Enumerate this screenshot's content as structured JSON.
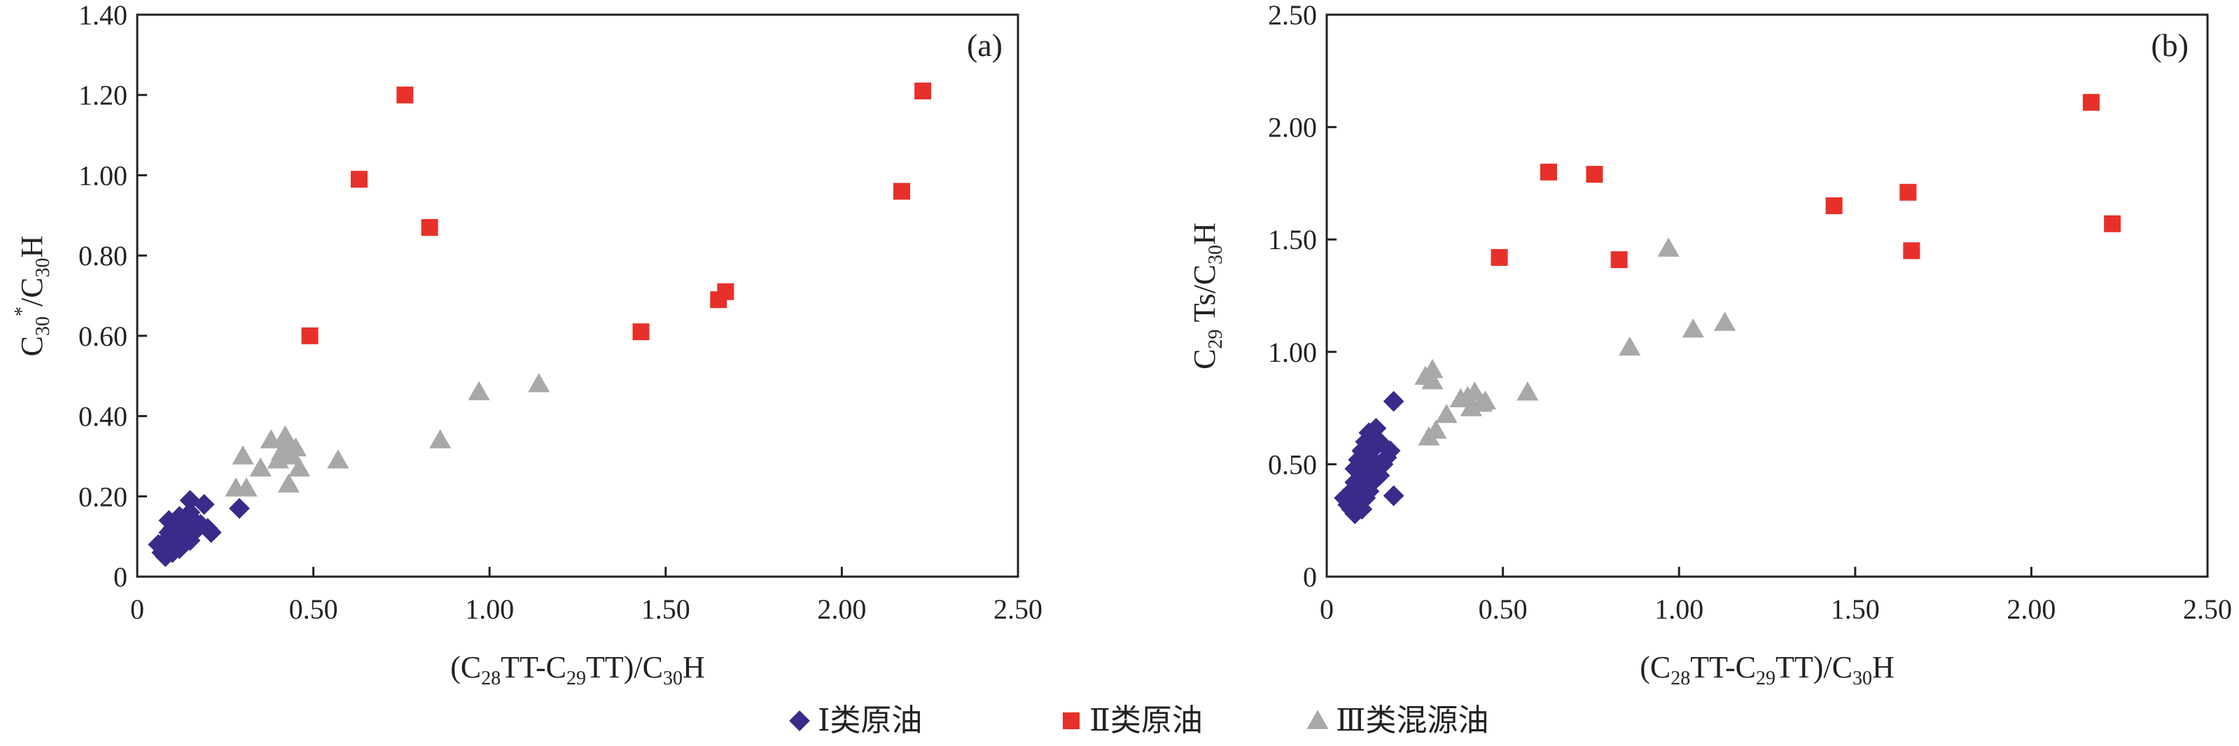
{
  "chart_data": [
    {
      "type": "scatter",
      "panel_label": "(a)",
      "xlabel": "(C28TT-C29TT)/C30H",
      "ylabel": "C30*/C30H",
      "xlim": [
        0,
        2.5
      ],
      "ylim": [
        0,
        1.4
      ],
      "x_ticks": [
        "0",
        "0.50",
        "1.00",
        "1.50",
        "2.00",
        "2.50"
      ],
      "y_ticks": [
        "0",
        "0.20",
        "0.40",
        "0.60",
        "0.80",
        "1.00",
        "1.20",
        "1.40"
      ],
      "grid": false,
      "series": [
        {
          "name": "Ⅰ类原油",
          "marker": "diamond",
          "color": "#3a2a8a",
          "points": [
            [
              0.06,
              0.08
            ],
            [
              0.07,
              0.06
            ],
            [
              0.08,
              0.05
            ],
            [
              0.08,
              0.09
            ],
            [
              0.09,
              0.07
            ],
            [
              0.09,
              0.11
            ],
            [
              0.09,
              0.14
            ],
            [
              0.1,
              0.06
            ],
            [
              0.1,
              0.09
            ],
            [
              0.1,
              0.12
            ],
            [
              0.11,
              0.08
            ],
            [
              0.11,
              0.1
            ],
            [
              0.11,
              0.13
            ],
            [
              0.12,
              0.07
            ],
            [
              0.12,
              0.09
            ],
            [
              0.12,
              0.12
            ],
            [
              0.12,
              0.15
            ],
            [
              0.13,
              0.08
            ],
            [
              0.13,
              0.11
            ],
            [
              0.13,
              0.14
            ],
            [
              0.14,
              0.1
            ],
            [
              0.14,
              0.12
            ],
            [
              0.15,
              0.09
            ],
            [
              0.15,
              0.16
            ],
            [
              0.15,
              0.19
            ],
            [
              0.16,
              0.11
            ],
            [
              0.16,
              0.14
            ],
            [
              0.18,
              0.13
            ],
            [
              0.19,
              0.18
            ],
            [
              0.2,
              0.12
            ],
            [
              0.21,
              0.11
            ],
            [
              0.29,
              0.17
            ]
          ]
        },
        {
          "name": "Ⅱ类原油",
          "marker": "square",
          "color": "#e8302a",
          "points": [
            [
              0.49,
              0.6
            ],
            [
              0.63,
              0.99
            ],
            [
              0.76,
              1.2
            ],
            [
              0.83,
              0.87
            ],
            [
              1.43,
              0.61
            ],
            [
              1.65,
              0.69
            ],
            [
              1.67,
              0.71
            ],
            [
              2.17,
              0.96
            ],
            [
              2.23,
              1.21
            ]
          ]
        },
        {
          "name": "Ⅲ类混源油",
          "marker": "triangle",
          "color": "#a8a8a8",
          "points": [
            [
              0.28,
              0.22
            ],
            [
              0.3,
              0.3
            ],
            [
              0.31,
              0.22
            ],
            [
              0.35,
              0.27
            ],
            [
              0.38,
              0.34
            ],
            [
              0.4,
              0.29
            ],
            [
              0.41,
              0.31
            ],
            [
              0.42,
              0.35
            ],
            [
              0.43,
              0.23
            ],
            [
              0.43,
              0.33
            ],
            [
              0.44,
              0.3
            ],
            [
              0.45,
              0.32
            ],
            [
              0.46,
              0.27
            ],
            [
              0.57,
              0.29
            ],
            [
              0.86,
              0.34
            ],
            [
              0.97,
              0.46
            ],
            [
              1.14,
              0.48
            ]
          ]
        }
      ]
    },
    {
      "type": "scatter",
      "panel_label": "(b)",
      "xlabel": "(C28TT-C29TT)/C30H",
      "ylabel": "C29Ts/C30H",
      "xlim": [
        0,
        2.5
      ],
      "ylim": [
        0,
        2.5
      ],
      "x_ticks": [
        "0",
        "0.50",
        "1.00",
        "1.50",
        "2.00",
        "2.50"
      ],
      "y_ticks": [
        "0",
        "0.50",
        "1.00",
        "1.50",
        "2.00",
        "2.50"
      ],
      "grid": false,
      "series": [
        {
          "name": "Ⅰ类原油",
          "marker": "diamond",
          "color": "#3a2a8a",
          "points": [
            [
              0.05,
              0.35
            ],
            [
              0.06,
              0.32
            ],
            [
              0.07,
              0.3
            ],
            [
              0.07,
              0.38
            ],
            [
              0.08,
              0.28
            ],
            [
              0.08,
              0.42
            ],
            [
              0.08,
              0.48
            ],
            [
              0.09,
              0.33
            ],
            [
              0.09,
              0.52
            ],
            [
              0.1,
              0.3
            ],
            [
              0.1,
              0.4
            ],
            [
              0.1,
              0.45
            ],
            [
              0.1,
              0.56
            ],
            [
              0.11,
              0.35
            ],
            [
              0.11,
              0.5
            ],
            [
              0.11,
              0.6
            ],
            [
              0.12,
              0.38
            ],
            [
              0.12,
              0.47
            ],
            [
              0.12,
              0.55
            ],
            [
              0.12,
              0.64
            ],
            [
              0.13,
              0.42
            ],
            [
              0.13,
              0.52
            ],
            [
              0.14,
              0.58
            ],
            [
              0.14,
              0.66
            ],
            [
              0.15,
              0.45
            ],
            [
              0.15,
              0.6
            ],
            [
              0.16,
              0.5
            ],
            [
              0.17,
              0.53
            ],
            [
              0.18,
              0.56
            ],
            [
              0.19,
              0.36
            ],
            [
              0.19,
              0.78
            ]
          ]
        },
        {
          "name": "Ⅱ类原油",
          "marker": "square",
          "color": "#e8302a",
          "points": [
            [
              0.49,
              1.42
            ],
            [
              0.63,
              1.8
            ],
            [
              0.76,
              1.79
            ],
            [
              0.83,
              1.41
            ],
            [
              1.44,
              1.65
            ],
            [
              1.65,
              1.71
            ],
            [
              1.66,
              1.45
            ],
            [
              2.17,
              2.11
            ],
            [
              2.23,
              1.57
            ]
          ]
        },
        {
          "name": "Ⅲ类混源油",
          "marker": "triangle",
          "color": "#a8a8a8",
          "points": [
            [
              0.28,
              0.89
            ],
            [
              0.29,
              0.62
            ],
            [
              0.3,
              0.92
            ],
            [
              0.3,
              0.87
            ],
            [
              0.31,
              0.65
            ],
            [
              0.34,
              0.72
            ],
            [
              0.38,
              0.79
            ],
            [
              0.4,
              0.8
            ],
            [
              0.41,
              0.75
            ],
            [
              0.42,
              0.82
            ],
            [
              0.44,
              0.77
            ],
            [
              0.45,
              0.78
            ],
            [
              0.57,
              0.82
            ],
            [
              0.86,
              1.02
            ],
            [
              0.97,
              1.46
            ],
            [
              1.04,
              1.1
            ],
            [
              1.13,
              1.13
            ]
          ]
        }
      ]
    }
  ],
  "legend": {
    "items": [
      {
        "label": "Ⅰ类原油",
        "marker": "diamond",
        "color": "#3a2a8a"
      },
      {
        "label": "Ⅱ类原油",
        "marker": "square",
        "color": "#e8302a"
      },
      {
        "label": "Ⅲ类混源油",
        "marker": "triangle",
        "color": "#a8a8a8"
      }
    ],
    "placement": "bottom-center"
  }
}
